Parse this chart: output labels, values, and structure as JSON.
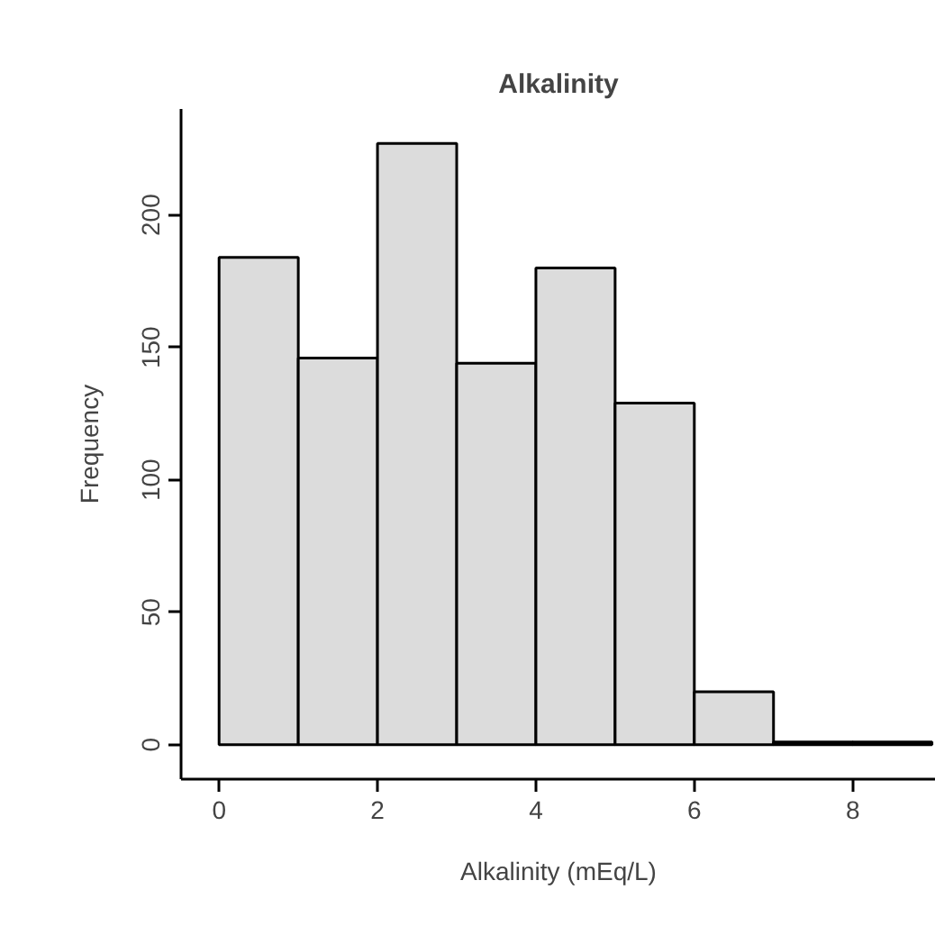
{
  "chart_data": {
    "type": "histogram",
    "title": "Alkalinity",
    "xlabel": "Alkalinity (mEq/L)",
    "ylabel": "Frequency",
    "bins": [
      0,
      1,
      2,
      3,
      4,
      5,
      6,
      7,
      8,
      9
    ],
    "values": [
      184,
      146,
      227,
      144,
      180,
      129,
      20,
      1,
      1
    ],
    "color": "#dcdcdc",
    "xlim": [
      -0.48,
      9.05
    ],
    "ylim": [
      -13,
      240
    ],
    "xticks": [
      0,
      2,
      4,
      6,
      8
    ],
    "yticks": [
      0,
      50,
      100,
      150,
      200
    ],
    "grid": false
  }
}
